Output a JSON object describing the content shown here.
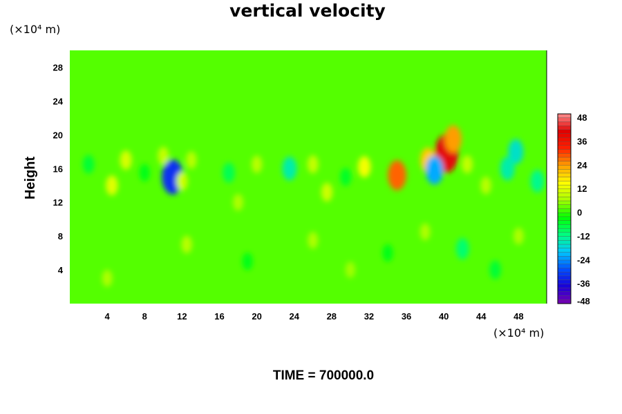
{
  "chart_data": {
    "type": "heatmap",
    "title": "vertical velocity",
    "ylabel": "Height",
    "xunit": "(×10⁴ m)",
    "yunit": "(×10⁴ m)",
    "xlim": [
      0,
      51
    ],
    "ylim": [
      0,
      30
    ],
    "xticks": [
      4,
      8,
      12,
      16,
      20,
      24,
      28,
      32,
      36,
      40,
      44,
      48
    ],
    "yticks": [
      4,
      8,
      12,
      16,
      20,
      24,
      28
    ],
    "colorbar": {
      "min": -48,
      "max": 48,
      "ticks": [
        48,
        36,
        24,
        12,
        0,
        -12,
        -24,
        -36,
        -48
      ],
      "stops": [
        "#7a00b0",
        "#1a00d8",
        "#0050ff",
        "#00c8ff",
        "#00ff80",
        "#00ff00",
        "#a8ff00",
        "#ffff00",
        "#ffa000",
        "#ff2000",
        "#e00000",
        "#ff9090"
      ]
    },
    "background_value": 0,
    "features": [
      {
        "x": 40.3,
        "y": 17.8,
        "value": 40
      },
      {
        "x": 35.0,
        "y": 15.2,
        "value": 26
      },
      {
        "x": 38.3,
        "y": 17.0,
        "value": 18
      },
      {
        "x": 31.5,
        "y": 16.2,
        "value": 12
      },
      {
        "x": 11.0,
        "y": 15.0,
        "value": -34
      },
      {
        "x": 39.0,
        "y": 15.8,
        "value": -24
      },
      {
        "x": 23.5,
        "y": 16.0,
        "value": -16
      },
      {
        "x": 47.7,
        "y": 18.0,
        "value": -18
      },
      {
        "x": 46.8,
        "y": 16.0,
        "value": -16
      },
      {
        "x": 41.0,
        "y": 19.5,
        "value": 22
      },
      {
        "x": 4.5,
        "y": 14.0,
        "value": 10
      },
      {
        "x": 17.0,
        "y": 15.5,
        "value": -10
      },
      {
        "x": 20.0,
        "y": 16.5,
        "value": 6
      },
      {
        "x": 27.5,
        "y": 13.2,
        "value": 8
      },
      {
        "x": 13.0,
        "y": 17.0,
        "value": 6
      },
      {
        "x": 26.0,
        "y": 16.5,
        "value": 7
      },
      {
        "x": 50.0,
        "y": 14.5,
        "value": -14
      },
      {
        "x": 12.0,
        "y": 14.5,
        "value": 8
      },
      {
        "x": 6.0,
        "y": 17.0,
        "value": 9
      },
      {
        "x": 42.5,
        "y": 16.5,
        "value": 7
      },
      {
        "x": 2.0,
        "y": 16.5,
        "value": -8
      },
      {
        "x": 10.0,
        "y": 17.5,
        "value": 7
      },
      {
        "x": 44.5,
        "y": 14.0,
        "value": 6
      },
      {
        "x": 8.0,
        "y": 15.5,
        "value": -6
      },
      {
        "x": 18.0,
        "y": 12.0,
        "value": 5
      },
      {
        "x": 29.5,
        "y": 15.0,
        "value": -7
      },
      {
        "x": 42.0,
        "y": 6.5,
        "value": -12
      },
      {
        "x": 34.0,
        "y": 6.0,
        "value": -6
      },
      {
        "x": 45.5,
        "y": 4.0,
        "value": -8
      },
      {
        "x": 12.5,
        "y": 7.0,
        "value": 6
      },
      {
        "x": 26.0,
        "y": 7.5,
        "value": 5
      },
      {
        "x": 38.0,
        "y": 8.5,
        "value": 5
      },
      {
        "x": 4.0,
        "y": 3.0,
        "value": 5
      },
      {
        "x": 19.0,
        "y": 5.0,
        "value": -6
      },
      {
        "x": 30.0,
        "y": 4.0,
        "value": 4
      },
      {
        "x": 48.0,
        "y": 8.0,
        "value": 5
      }
    ]
  },
  "footer": {
    "time_label": "TIME = 700000.0"
  }
}
